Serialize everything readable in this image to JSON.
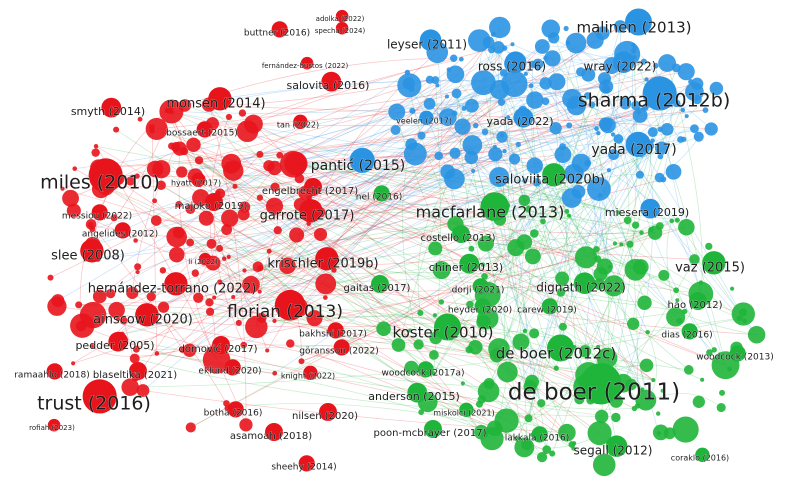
{
  "cluster_colors": [
    "#e8141c",
    "#2a93e2",
    "#1fb53a"
  ],
  "nodes": [
    {
      "label": "buttner (2016)",
      "cluster": 0
    },
    {
      "label": "adolka (2022)",
      "cluster": 0
    },
    {
      "label": "specha (2024)",
      "cluster": 0
    },
    {
      "label": "fernández-bustos (2022)",
      "cluster": 0
    },
    {
      "label": "salovita (2016)",
      "cluster": 0
    },
    {
      "label": "monsen (2014)",
      "cluster": 0
    },
    {
      "label": "smyth (2014)",
      "cluster": 0
    },
    {
      "label": "bossaert (2015)",
      "cluster": 0
    },
    {
      "label": "tan (2022)",
      "cluster": 0
    },
    {
      "label": "miles (2010)",
      "cluster": 0
    },
    {
      "label": "hyatt (2017)",
      "cluster": 0
    },
    {
      "label": "engelbrecht (2017)",
      "cluster": 0
    },
    {
      "label": "majoko (2019)",
      "cluster": 0
    },
    {
      "label": "messiou (2022)",
      "cluster": 0
    },
    {
      "label": "garrote (2017)",
      "cluster": 0
    },
    {
      "label": "angelides (2012)",
      "cluster": 0
    },
    {
      "label": "slee (2008)",
      "cluster": 0
    },
    {
      "label": "li (2022)",
      "cluster": 0
    },
    {
      "label": "krischler (2019b)",
      "cluster": 0
    },
    {
      "label": "hernández-torrano (2022)",
      "cluster": 0
    },
    {
      "label": "florian (2013)",
      "cluster": 0
    },
    {
      "label": "ainscow (2020)",
      "cluster": 0
    },
    {
      "label": "pedder (2005)",
      "cluster": 0
    },
    {
      "label": "domović (2017)",
      "cluster": 0
    },
    {
      "label": "bakhshi (2017)",
      "cluster": 0
    },
    {
      "label": "göransson (2022)",
      "cluster": 0
    },
    {
      "label": "ramaahlo (2018)",
      "cluster": 0
    },
    {
      "label": "blaseltika (2021)",
      "cluster": 0
    },
    {
      "label": "eklund (2020)",
      "cluster": 0
    },
    {
      "label": "knight (2022)",
      "cluster": 0
    },
    {
      "label": "trust (2016)",
      "cluster": 0
    },
    {
      "label": "botha (2016)",
      "cluster": 0
    },
    {
      "label": "nilsen (2020)",
      "cluster": 0
    },
    {
      "label": "rofiah (2023)",
      "cluster": 0
    },
    {
      "label": "asamoah (2018)",
      "cluster": 0
    },
    {
      "label": "sheehy (2014)",
      "cluster": 0
    },
    {
      "label": "malinen (2013)",
      "cluster": 1
    },
    {
      "label": "leyser (2011)",
      "cluster": 1
    },
    {
      "label": "ross (2016)",
      "cluster": 1
    },
    {
      "label": "wray (2022)",
      "cluster": 1
    },
    {
      "label": "sharma (2012b)",
      "cluster": 1
    },
    {
      "label": "veelen (2017)",
      "cluster": 1
    },
    {
      "label": "yada (2022)",
      "cluster": 1
    },
    {
      "label": "yada (2017)",
      "cluster": 1
    },
    {
      "label": "pantić (2015)",
      "cluster": 1
    },
    {
      "label": "miesera (2019)",
      "cluster": 1
    },
    {
      "label": "saloviita (2020b)",
      "cluster": 2
    },
    {
      "label": "macfarlane (2013)",
      "cluster": 2
    },
    {
      "label": "nel (2016)",
      "cluster": 2
    },
    {
      "label": "costello (2013)",
      "cluster": 2
    },
    {
      "label": "chiner (2013)",
      "cluster": 2
    },
    {
      "label": "vaz (2015)",
      "cluster": 2
    },
    {
      "label": "gaitas (2017)",
      "cluster": 2
    },
    {
      "label": "dorji (2021)",
      "cluster": 2
    },
    {
      "label": "dignath (2022)",
      "cluster": 2
    },
    {
      "label": "hao (2012)",
      "cluster": 2
    },
    {
      "label": "heyder (2020)",
      "cluster": 2
    },
    {
      "label": "carew (2019)",
      "cluster": 2
    },
    {
      "label": "koster (2010)",
      "cluster": 2
    },
    {
      "label": "dias (2016)",
      "cluster": 2
    },
    {
      "label": "de boer (2012c)",
      "cluster": 2
    },
    {
      "label": "woodcock (2013)",
      "cluster": 2
    },
    {
      "label": "woodcock (2017a)",
      "cluster": 2
    },
    {
      "label": "de boer (2011)",
      "cluster": 2
    },
    {
      "label": "anderson (2015)",
      "cluster": 2
    },
    {
      "label": "miskolci (2021)",
      "cluster": 2
    },
    {
      "label": "poon-mcbrayer (2017)",
      "cluster": 2
    },
    {
      "label": "lakkala (2016)",
      "cluster": 2
    },
    {
      "label": "segall (2012)",
      "cluster": 2
    },
    {
      "label": "coraklo (2016)",
      "cluster": 2
    }
  ]
}
